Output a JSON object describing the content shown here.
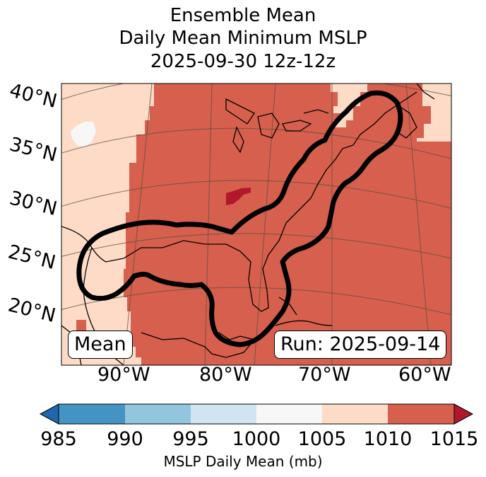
{
  "title": {
    "line1": "Ensemble Mean",
    "line2": "Daily Mean Minimum MSLP",
    "line3": "2025-09-30 12z-12z"
  },
  "map": {
    "lat_labels": [
      "40°N",
      "35°N",
      "30°N",
      "25°N",
      "20°N"
    ],
    "lon_labels": [
      "90°W",
      "80°W",
      "70°W",
      "60°W"
    ],
    "field_value_class": "1010-1015",
    "mean_label": "Mean",
    "run_label": "Run: 2025-09-14",
    "colors": {
      "c1010": "#d6604d",
      "c1005": "#fddbc7",
      "c1000": "#f7f7f7",
      "c1015": "#b2182b"
    }
  },
  "colorbar": {
    "ticks": [
      "985",
      "990",
      "995",
      "1000",
      "1005",
      "1010",
      "1015"
    ],
    "label": "MSLP Daily Mean (mb)",
    "bins": [
      {
        "range": "<985",
        "color": "#2166ac"
      },
      {
        "range": "985-990",
        "color": "#4393c3"
      },
      {
        "range": "990-995",
        "color": "#92c5de"
      },
      {
        "range": "995-1000",
        "color": "#d1e5f0"
      },
      {
        "range": "1000-1005",
        "color": "#f7f7f7"
      },
      {
        "range": "1005-1010",
        "color": "#fddbc7"
      },
      {
        "range": "1010-1015",
        "color": "#d6604d"
      },
      {
        "range": ">1015",
        "color": "#b2182b"
      }
    ]
  }
}
